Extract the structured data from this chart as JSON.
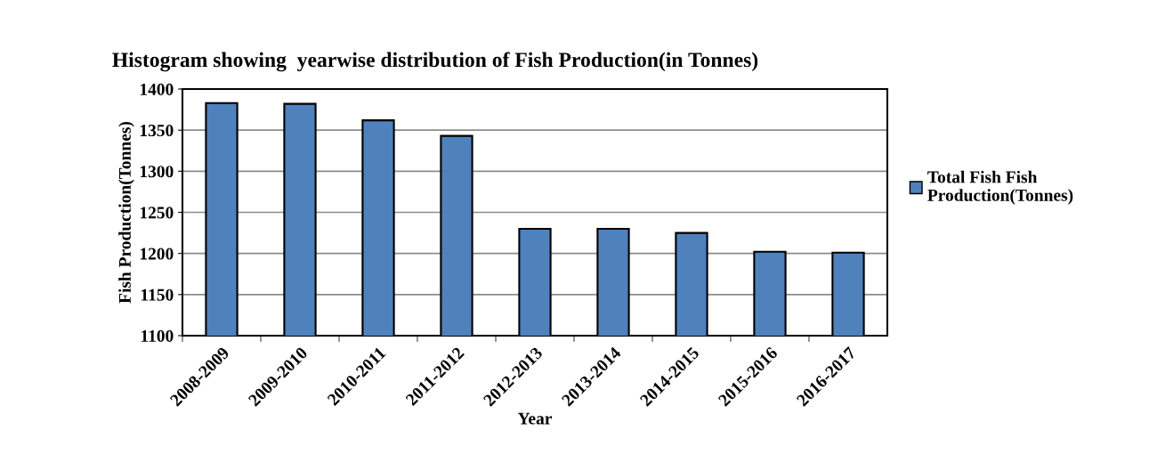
{
  "chart_data": {
    "type": "bar",
    "title": "Histogram showing  yearwise distribution of Fish Production(in Tonnes)",
    "xlabel": "Year",
    "ylabel": "Fish Production(Tonnes)",
    "categories": [
      "2008-2009",
      "2009-2010",
      "2010-2011",
      "2011-2012",
      "2012-2013",
      "2013-2014",
      "2014-2015",
      "2015-2016",
      "2016-2017"
    ],
    "series": [
      {
        "name": "Total Fish Fish\nProduction(Tonnes)",
        "color": "#4f81bd",
        "values": [
          1383,
          1382,
          1362,
          1343,
          1230,
          1230,
          1225,
          1202,
          1201
        ]
      }
    ],
    "ylim": [
      1100,
      1400
    ],
    "yticks": [
      1100,
      1150,
      1200,
      1250,
      1300,
      1350,
      1400
    ],
    "grid": "y",
    "legend": "right"
  }
}
